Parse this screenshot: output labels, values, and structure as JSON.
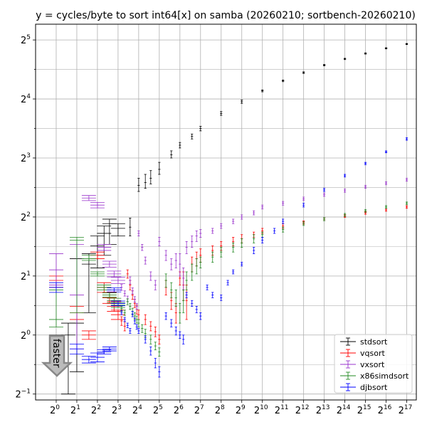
{
  "chart_data": {
    "type": "scatter",
    "title": "y = cycles/byte to sort int64[x] on samba (20260210; sortbench-20260210)",
    "x_scale": "log2",
    "y_scale": "log2",
    "xlim": [
      0.5,
      181019
    ],
    "ylim": [
      0.4665,
      38.5
    ],
    "grid": true,
    "legend_position": "lower-right",
    "arrow_label": "faster",
    "x_tick_labels": [
      {
        "base": "2",
        "exp": "0",
        "value": 1
      },
      {
        "base": "2",
        "exp": "1",
        "value": 2
      },
      {
        "base": "2",
        "exp": "2",
        "value": 4
      },
      {
        "base": "2",
        "exp": "3",
        "value": 8
      },
      {
        "base": "2",
        "exp": "4",
        "value": 16
      },
      {
        "base": "2",
        "exp": "5",
        "value": 32
      },
      {
        "base": "2",
        "exp": "6",
        "value": 64
      },
      {
        "base": "2",
        "exp": "7",
        "value": 128
      },
      {
        "base": "2",
        "exp": "8",
        "value": 256
      },
      {
        "base": "2",
        "exp": "9",
        "value": 512
      },
      {
        "base": "2",
        "exp": "10",
        "value": 1024
      },
      {
        "base": "2",
        "exp": "11",
        "value": 2048
      },
      {
        "base": "2",
        "exp": "12",
        "value": 4096
      },
      {
        "base": "2",
        "exp": "13",
        "value": 8192
      },
      {
        "base": "2",
        "exp": "14",
        "value": 16384
      },
      {
        "base": "2",
        "exp": "15",
        "value": 32768
      },
      {
        "base": "2",
        "exp": "16",
        "value": 65536
      },
      {
        "base": "2",
        "exp": "17",
        "value": 131072
      }
    ],
    "y_tick_labels": [
      {
        "base": "2",
        "exp": "−1",
        "value": 0.5
      },
      {
        "base": "2",
        "exp": "0",
        "value": 1
      },
      {
        "base": "2",
        "exp": "1",
        "value": 2
      },
      {
        "base": "2",
        "exp": "2",
        "value": 4
      },
      {
        "base": "2",
        "exp": "3",
        "value": 8
      },
      {
        "base": "2",
        "exp": "4",
        "value": 16
      },
      {
        "base": "2",
        "exp": "5",
        "value": 32
      }
    ],
    "series": [
      {
        "name": "stdsort",
        "color": "#000000",
        "x": [
          1,
          1.5,
          2,
          3,
          4,
          5,
          6,
          8,
          12,
          16,
          20,
          24,
          32,
          48,
          64,
          96,
          128,
          256,
          512,
          1024,
          2048,
          4096,
          8192,
          16384,
          32768,
          65536,
          131072
        ],
        "y": [
          0.95,
          1.0,
          1.15,
          2.3,
          2.85,
          3.3,
          3.7,
          3.5,
          3.55,
          5.8,
          6.0,
          6.3,
          7.0,
          8.3,
          9.3,
          10.3,
          11.3,
          13.5,
          15.5,
          17.6,
          19.8,
          21.8,
          23.8,
          25.6,
          27.3,
          29.0,
          30.5
        ],
        "lo": [
          0.9,
          0.5,
          0.65,
          1.3,
          2.2,
          2.55,
          2.9,
          3.2,
          3.2,
          5.4,
          5.6,
          5.9,
          6.6,
          8.0,
          9.0,
          10.0,
          11.0,
          13.2,
          15.2,
          17.4,
          19.6,
          21.6,
          23.6,
          25.4,
          27.1,
          28.8,
          30.3
        ],
        "hi": [
          1.0,
          1.15,
          2.45,
          2.6,
          3.2,
          3.6,
          3.9,
          3.7,
          3.95,
          6.3,
          6.6,
          6.9,
          7.6,
          8.7,
          9.6,
          10.6,
          11.6,
          13.8,
          15.8,
          17.8,
          20.0,
          22.0,
          24.0,
          25.8,
          27.5,
          29.2,
          30.7
        ]
      },
      {
        "name": "vqsort",
        "color": "#ff0000",
        "x": [
          1,
          2,
          3,
          4,
          5,
          6,
          7,
          8,
          9,
          10,
          11,
          12,
          13,
          14,
          15,
          16,
          20,
          24,
          28,
          32,
          40,
          48,
          56,
          64,
          72,
          80,
          96,
          112,
          128,
          192,
          256,
          384,
          512,
          768,
          1024,
          2048,
          4096,
          8192,
          16384,
          32768,
          65536,
          131072
        ],
        "y": [
          1.9,
          1.3,
          1.0,
          2.55,
          1.75,
          1.55,
          1.4,
          1.27,
          1.18,
          1.11,
          2.05,
          1.8,
          1.6,
          1.45,
          1.35,
          1.27,
          1.2,
          1.11,
          1.04,
          0.95,
          1.75,
          1.5,
          1.3,
          1.95,
          1.8,
          1.5,
          2.3,
          2.45,
          2.55,
          2.7,
          2.85,
          3.0,
          3.1,
          3.25,
          3.4,
          3.6,
          3.75,
          3.9,
          4.05,
          4.2,
          4.35,
          4.5
        ],
        "lo": [
          1.75,
          1.2,
          0.95,
          2.45,
          1.65,
          1.45,
          1.32,
          1.2,
          1.12,
          1.05,
          1.95,
          1.7,
          1.52,
          1.38,
          1.28,
          1.2,
          1.13,
          1.05,
          0.98,
          0.9,
          1.6,
          1.35,
          1.15,
          1.8,
          1.5,
          1.2,
          2.1,
          2.25,
          2.35,
          2.55,
          2.7,
          2.85,
          2.95,
          3.15,
          3.3,
          3.5,
          3.68,
          3.83,
          3.98,
          4.13,
          4.28,
          4.43
        ],
        "hi": [
          2.0,
          1.4,
          1.05,
          2.65,
          1.85,
          1.65,
          1.48,
          1.34,
          1.24,
          1.17,
          2.15,
          1.9,
          1.68,
          1.52,
          1.42,
          1.34,
          1.27,
          1.17,
          1.1,
          1.0,
          1.9,
          1.65,
          1.45,
          2.1,
          2.1,
          1.8,
          2.5,
          2.65,
          2.75,
          2.85,
          3.0,
          3.15,
          3.25,
          3.35,
          3.5,
          3.7,
          3.82,
          3.97,
          4.12,
          4.27,
          4.42,
          4.57
        ]
      },
      {
        "name": "vxsort",
        "color": "#9933cc",
        "x": [
          1,
          2,
          3,
          4,
          5,
          6,
          7,
          8,
          9,
          10,
          11,
          12,
          13,
          14,
          15,
          16,
          18,
          20,
          24,
          28,
          32,
          40,
          48,
          56,
          64,
          72,
          80,
          96,
          112,
          128,
          192,
          256,
          384,
          512,
          768,
          1024,
          2048,
          4096,
          8192,
          16384,
          32768,
          65536,
          131072
        ],
        "y": [
          2.15,
          1.6,
          5.0,
          4.6,
          2.8,
          2.3,
          2.05,
          1.9,
          1.75,
          1.63,
          1.53,
          1.9,
          1.68,
          1.52,
          1.4,
          3.3,
          2.8,
          2.4,
          2.0,
          1.8,
          3.0,
          2.55,
          2.3,
          2.4,
          2.3,
          1.95,
          2.8,
          3.0,
          3.2,
          3.3,
          3.4,
          3.6,
          3.8,
          4.0,
          4.2,
          4.5,
          4.7,
          4.95,
          5.2,
          5.45,
          5.7,
          5.95,
          6.2
        ],
        "lo": [
          1.8,
          0.85,
          4.85,
          4.45,
          2.7,
          2.22,
          1.98,
          1.83,
          1.69,
          1.58,
          1.48,
          1.82,
          1.62,
          1.47,
          1.35,
          3.2,
          2.7,
          2.3,
          1.9,
          1.7,
          2.85,
          2.4,
          2.15,
          2.2,
          2.0,
          1.7,
          2.6,
          2.8,
          3.0,
          3.15,
          3.3,
          3.5,
          3.7,
          3.9,
          4.1,
          4.4,
          4.6,
          4.85,
          5.1,
          5.35,
          5.6,
          5.85,
          6.1
        ],
        "hi": [
          2.6,
          2.9,
          5.15,
          4.75,
          2.9,
          2.38,
          2.12,
          1.97,
          1.81,
          1.68,
          1.58,
          1.98,
          1.74,
          1.57,
          1.45,
          3.4,
          2.9,
          2.5,
          2.1,
          1.9,
          3.15,
          2.7,
          2.45,
          2.6,
          2.6,
          2.2,
          3.0,
          3.2,
          3.4,
          3.45,
          3.5,
          3.7,
          3.9,
          4.1,
          4.3,
          4.6,
          4.8,
          5.05,
          5.3,
          5.55,
          5.8,
          6.05,
          6.3
        ]
      },
      {
        "name": "x86simdsort",
        "color": "#228822",
        "x": [
          1,
          2,
          3,
          4,
          5,
          6,
          7,
          8,
          9,
          10,
          11,
          12,
          13,
          14,
          15,
          16,
          18,
          20,
          24,
          28,
          32,
          40,
          48,
          56,
          64,
          72,
          80,
          96,
          112,
          128,
          192,
          256,
          384,
          512,
          768,
          1024,
          2048,
          4096,
          8192,
          16384,
          32768,
          65536,
          131072
        ],
        "y": [
          1.2,
          3.05,
          2.45,
          2.05,
          1.75,
          1.6,
          1.5,
          1.42,
          1.36,
          1.3,
          1.48,
          1.4,
          1.32,
          1.25,
          1.2,
          1.15,
          1.08,
          1.02,
          0.95,
          0.88,
          0.82,
          1.9,
          1.7,
          1.55,
          1.3,
          1.5,
          1.9,
          2.1,
          2.25,
          2.35,
          2.5,
          2.65,
          2.8,
          2.95,
          3.1,
          3.25,
          3.45,
          3.7,
          3.9,
          4.1,
          4.3,
          4.5,
          4.7
        ],
        "lo": [
          1.1,
          1.3,
          2.4,
          2.0,
          1.7,
          1.56,
          1.46,
          1.38,
          1.32,
          1.26,
          1.43,
          1.35,
          1.27,
          1.2,
          1.15,
          1.1,
          1.03,
          0.97,
          0.9,
          0.84,
          0.78,
          1.75,
          1.55,
          1.4,
          1.15,
          1.3,
          1.7,
          1.9,
          2.05,
          2.2,
          2.35,
          2.5,
          2.65,
          2.8,
          2.95,
          3.15,
          3.35,
          3.62,
          3.83,
          4.03,
          4.23,
          4.43,
          4.63
        ],
        "hi": [
          1.7,
          3.15,
          2.55,
          2.1,
          1.8,
          1.64,
          1.54,
          1.46,
          1.4,
          1.34,
          1.53,
          1.45,
          1.37,
          1.3,
          1.25,
          1.2,
          1.13,
          1.07,
          1.0,
          0.92,
          0.86,
          2.05,
          1.85,
          1.7,
          1.45,
          1.7,
          2.1,
          2.3,
          2.45,
          2.5,
          2.65,
          2.8,
          2.95,
          3.1,
          3.25,
          3.35,
          3.55,
          3.78,
          3.97,
          4.17,
          4.37,
          4.57,
          4.77
        ]
      },
      {
        "name": "djbsort",
        "color": "#0000ff",
        "x": [
          1,
          2,
          3,
          4,
          5,
          6,
          7,
          8,
          9,
          10,
          11,
          12,
          13,
          14,
          15,
          16,
          20,
          24,
          28,
          32,
          40,
          48,
          56,
          64,
          72,
          80,
          96,
          112,
          128,
          160,
          192,
          256,
          320,
          384,
          512,
          768,
          1024,
          1536,
          2048,
          4096,
          8192,
          16384,
          32768,
          65536,
          131072
        ],
        "y": [
          1.75,
          0.85,
          0.75,
          0.77,
          0.82,
          0.85,
          1.7,
          1.45,
          1.3,
          1.2,
          1.12,
          1.05,
          1.28,
          1.18,
          1.1,
          1.05,
          0.95,
          0.83,
          0.72,
          0.65,
          1.25,
          1.15,
          1.05,
          1.0,
          0.95,
          1.6,
          1.45,
          1.35,
          1.25,
          1.75,
          1.6,
          1.55,
          1.85,
          2.1,
          2.3,
          2.7,
          3.05,
          3.4,
          3.8,
          4.6,
          5.5,
          6.5,
          7.5,
          8.6,
          10.0
        ],
        "lo": [
          1.65,
          0.8,
          0.72,
          0.73,
          0.8,
          0.83,
          1.66,
          1.41,
          1.27,
          1.17,
          1.09,
          1.02,
          1.24,
          1.14,
          1.07,
          1.02,
          0.91,
          0.79,
          0.68,
          0.61,
          1.2,
          1.1,
          1.0,
          0.96,
          0.9,
          1.55,
          1.4,
          1.3,
          1.2,
          1.7,
          1.55,
          1.5,
          1.8,
          2.05,
          2.25,
          2.6,
          2.95,
          3.3,
          3.7,
          4.5,
          5.4,
          6.4,
          7.4,
          8.5,
          9.85
        ],
        "hi": [
          1.85,
          0.9,
          0.78,
          0.81,
          0.84,
          0.87,
          1.74,
          1.49,
          1.33,
          1.23,
          1.15,
          1.08,
          1.32,
          1.22,
          1.13,
          1.08,
          0.99,
          0.87,
          0.76,
          0.69,
          1.3,
          1.2,
          1.1,
          1.04,
          1.0,
          1.65,
          1.5,
          1.4,
          1.3,
          1.8,
          1.65,
          1.6,
          1.9,
          2.15,
          2.35,
          2.8,
          3.15,
          3.5,
          3.9,
          4.7,
          5.6,
          6.6,
          7.6,
          8.7,
          10.15
        ]
      }
    ]
  }
}
